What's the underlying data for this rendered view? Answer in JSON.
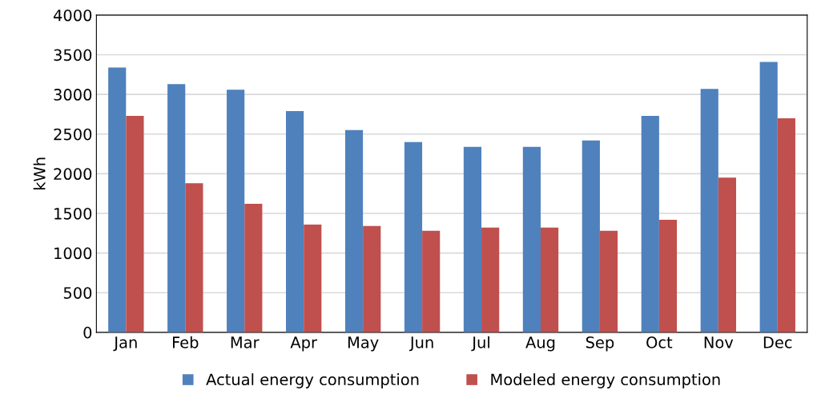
{
  "chart_data": {
    "type": "bar",
    "ylabel": "kWh",
    "categories": [
      "Jan",
      "Feb",
      "Mar",
      "Apr",
      "May",
      "Jun",
      "Jul",
      "Aug",
      "Sep",
      "Oct",
      "Nov",
      "Dec"
    ],
    "series": [
      {
        "name": "Actual energy consumption",
        "color": "#4f81bd",
        "values": [
          3340,
          3130,
          3060,
          2790,
          2550,
          2400,
          2340,
          2340,
          2420,
          2730,
          3070,
          3410
        ]
      },
      {
        "name": "Modeled energy consumption",
        "color": "#c0504d",
        "values": [
          2730,
          1880,
          1620,
          1360,
          1340,
          1280,
          1320,
          1320,
          1280,
          1420,
          1950,
          2700
        ]
      }
    ],
    "ylim": [
      0,
      4000
    ],
    "yticks": [
      0,
      500,
      1000,
      1500,
      2000,
      2500,
      3000,
      3500,
      4000
    ],
    "grid": "y",
    "legend": "bottom"
  }
}
